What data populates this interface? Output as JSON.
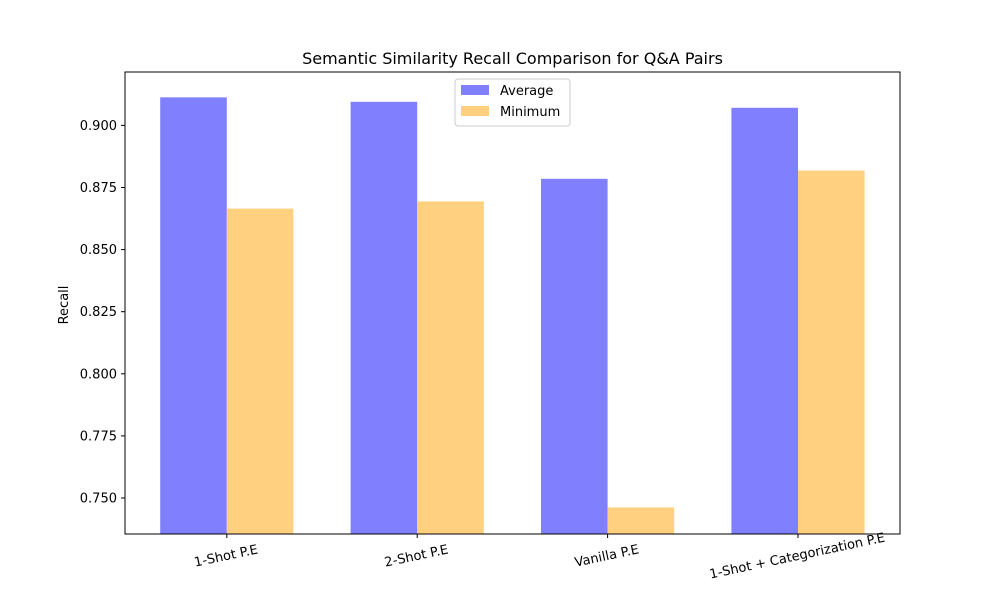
{
  "chart_data": {
    "type": "bar",
    "title": "Semantic Similarity Recall Comparison for Q&A Pairs",
    "xlabel": "",
    "ylabel": "Recall",
    "categories": [
      "1-Shot P.E",
      "2-Shot P.E",
      "Vanilla P.E",
      "1-Shot + Categorization P.E"
    ],
    "series": [
      {
        "name": "Average",
        "color": "#8080ff",
        "values": [
          0.9113,
          0.9095,
          0.8785,
          0.9071
        ]
      },
      {
        "name": "Minimum",
        "color": "#ffd080",
        "values": [
          0.8665,
          0.8694,
          0.7462,
          0.8818
        ]
      }
    ],
    "ylim": [
      0.7355,
      0.9215
    ],
    "yticks": [
      0.75,
      0.775,
      0.8,
      0.825,
      0.85,
      0.875,
      0.9
    ],
    "ytick_labels": [
      "0.750",
      "0.775",
      "0.800",
      "0.825",
      "0.850",
      "0.875",
      "0.900"
    ],
    "grid": false,
    "legend_position": "top-center"
  }
}
